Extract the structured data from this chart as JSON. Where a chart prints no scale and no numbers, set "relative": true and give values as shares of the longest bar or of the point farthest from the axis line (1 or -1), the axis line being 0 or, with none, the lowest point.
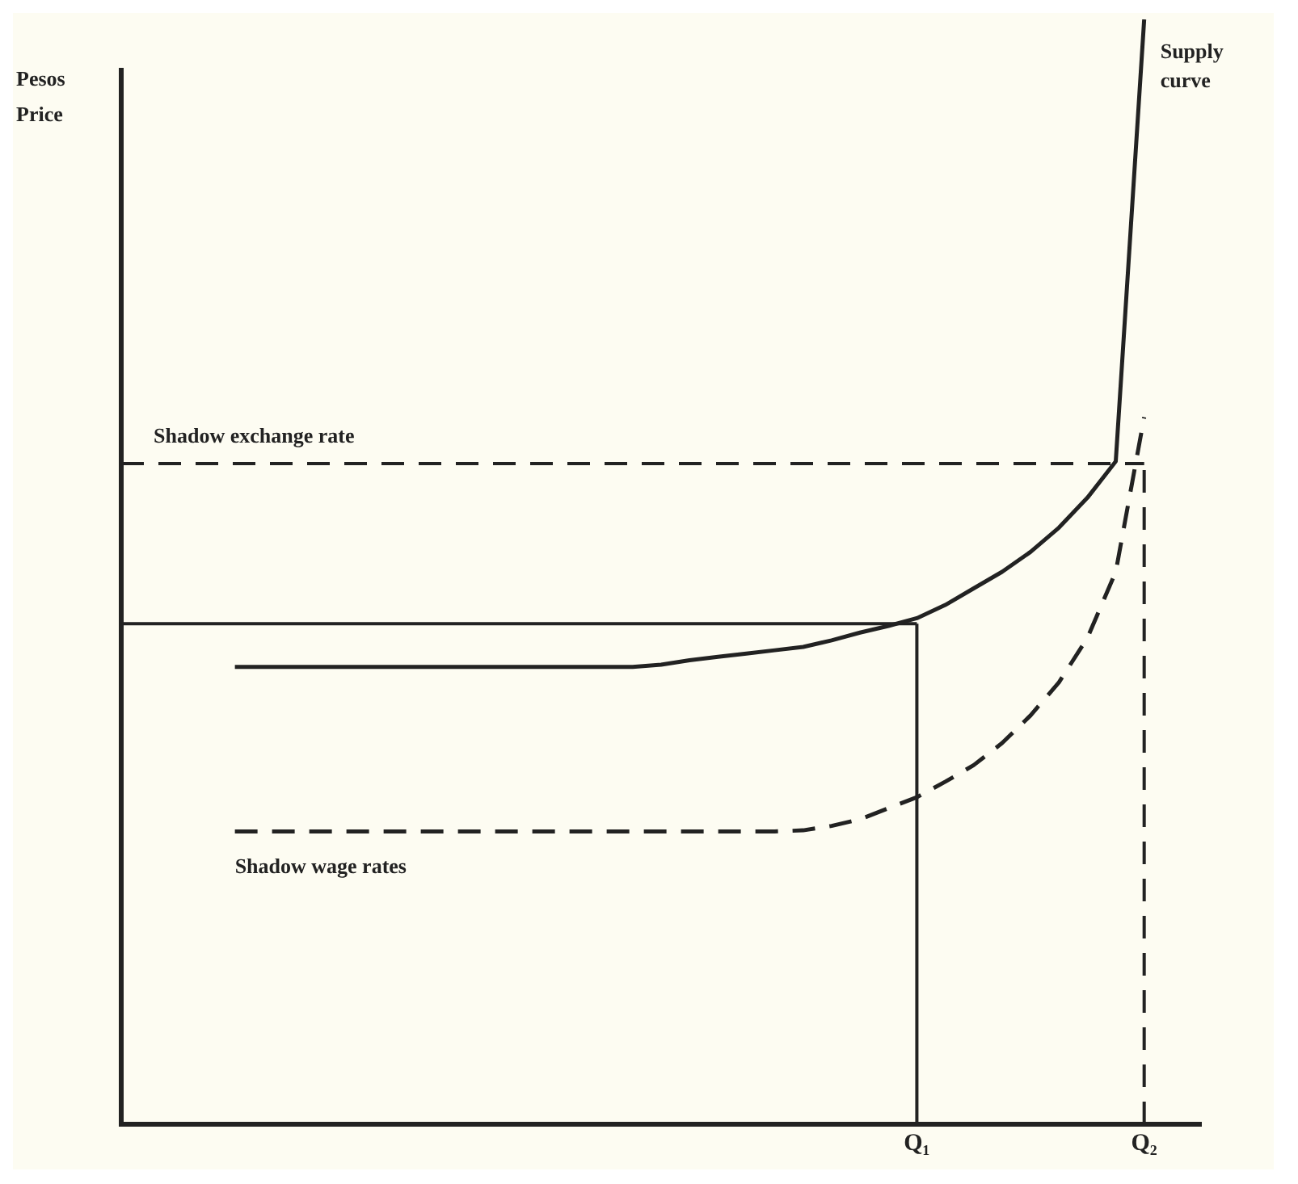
{
  "chart_data": {
    "type": "line",
    "relative": true,
    "ylabel": "Pesos Price",
    "categories": [
      null,
      null,
      null,
      null,
      null,
      null,
      null,
      null,
      null,
      null,
      null,
      null,
      null,
      null,
      null,
      null,
      null,
      null,
      null,
      null,
      null,
      null,
      null,
      null,
      null,
      null,
      null,
      null,
      "Q₁",
      null,
      null,
      null,
      null,
      null,
      null,
      null,
      "Q₂",
      null,
      null
    ],
    "series": [
      {
        "name": "Supply curve",
        "color": "#222222",
        "line_style": "solid",
        "values": [
          null,
          null,
          null,
          null,
          0.414,
          0.414,
          0.414,
          0.414,
          0.414,
          0.414,
          0.414,
          0.414,
          0.414,
          0.414,
          0.414,
          0.414,
          0.414,
          0.414,
          0.414,
          0.416,
          0.42,
          0.423,
          0.426,
          0.429,
          0.432,
          0.438,
          0.445,
          0.451,
          0.458,
          0.47,
          0.485,
          0.5,
          0.518,
          0.54,
          0.567,
          0.6,
          1.0,
          null,
          null
        ]
      },
      {
        "name": "Shadow wage rates",
        "color": "#222222",
        "line_style": "dashed",
        "values": [
          null,
          null,
          null,
          null,
          0.265,
          0.265,
          0.265,
          0.265,
          0.265,
          0.265,
          0.265,
          0.265,
          0.265,
          0.265,
          0.265,
          0.265,
          0.265,
          0.265,
          0.265,
          0.265,
          0.265,
          0.265,
          0.265,
          0.265,
          0.266,
          0.27,
          0.276,
          0.286,
          0.296,
          0.31,
          0.325,
          0.345,
          0.37,
          0.4,
          0.44,
          0.5,
          0.64,
          null,
          null
        ]
      }
    ],
    "ref_lines": [
      {
        "axis": "y",
        "value": 0.453,
        "color": "#222222",
        "line_style": "solid"
      },
      {
        "axis": "x",
        "value": "Q₁",
        "color": "#222222",
        "line_style": "solid"
      },
      {
        "axis": "y",
        "value": 0.598,
        "label": "Shadow exchange rate",
        "color": "#222222",
        "line_style": "dashed"
      },
      {
        "axis": "x",
        "value": "Q₂",
        "color": "#222222",
        "line_style": "dashed"
      }
    ]
  }
}
